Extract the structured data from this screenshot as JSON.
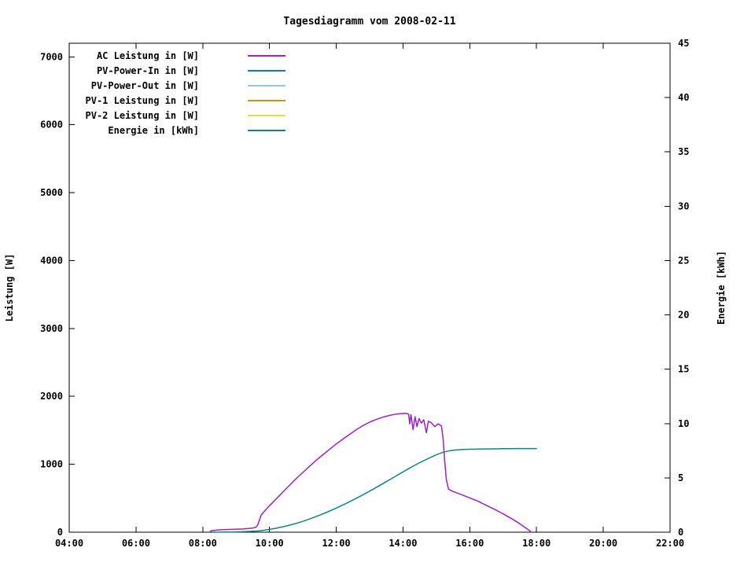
{
  "chart_data": {
    "type": "line",
    "title": "Tagesdiagramm vom 2008-02-11",
    "grid": false,
    "legend_position": "top-left-inside",
    "x_axis": {
      "min": 4,
      "max": 22,
      "ticks": [
        4,
        6,
        8,
        10,
        12,
        14,
        16,
        18,
        20,
        22
      ],
      "tick_labels": [
        "04:00",
        "06:00",
        "08:00",
        "10:00",
        "12:00",
        "14:00",
        "16:00",
        "18:00",
        "20:00",
        "22:00"
      ]
    },
    "y_left": {
      "label": "Leistung [W]",
      "min": 0,
      "max": 7200,
      "ticks": [
        0,
        1000,
        2000,
        3000,
        4000,
        5000,
        6000,
        7000
      ]
    },
    "y_right": {
      "label": "Energie [kWh]",
      "min": 0,
      "max": 45,
      "ticks": [
        0,
        5,
        10,
        15,
        20,
        25,
        30,
        35,
        40,
        45
      ]
    },
    "legend": [
      {
        "label": "AC Leistung in [W]",
        "color": "#A020C0"
      },
      {
        "label": "PV-Power-In in [W]",
        "color": "#008B8B"
      },
      {
        "label": "PV-Power-Out in [W]",
        "color": "#8CC8E8"
      },
      {
        "label": "PV-1 Leistung in [W]",
        "color": "#C89600"
      },
      {
        "label": "PV-2 Leistung in [W]",
        "color": "#E0E040"
      },
      {
        "label": "Energie in [kWh]",
        "color": "#0E8585"
      }
    ],
    "series": [
      {
        "id": "ac-leistung",
        "name": "AC Leistung in [W]",
        "axis": "left",
        "unit": "W",
        "color": "#A020C0",
        "points": [
          [
            8.2,
            0
          ],
          [
            8.25,
            20
          ],
          [
            8.4,
            30
          ],
          [
            8.6,
            38
          ],
          [
            8.9,
            42
          ],
          [
            9.2,
            48
          ],
          [
            9.5,
            60
          ],
          [
            9.6,
            75
          ],
          [
            9.65,
            110
          ],
          [
            9.7,
            180
          ],
          [
            9.75,
            250
          ],
          [
            9.85,
            310
          ],
          [
            10.0,
            390
          ],
          [
            10.2,
            490
          ],
          [
            10.4,
            590
          ],
          [
            10.6,
            690
          ],
          [
            10.8,
            790
          ],
          [
            11.0,
            880
          ],
          [
            11.2,
            970
          ],
          [
            11.4,
            1060
          ],
          [
            11.6,
            1140
          ],
          [
            11.8,
            1220
          ],
          [
            12.0,
            1300
          ],
          [
            12.2,
            1370
          ],
          [
            12.4,
            1440
          ],
          [
            12.6,
            1510
          ],
          [
            12.8,
            1570
          ],
          [
            13.0,
            1620
          ],
          [
            13.2,
            1660
          ],
          [
            13.4,
            1695
          ],
          [
            13.6,
            1720
          ],
          [
            13.8,
            1740
          ],
          [
            14.0,
            1748
          ],
          [
            14.1,
            1750
          ],
          [
            14.17,
            1735
          ],
          [
            14.2,
            1595
          ],
          [
            14.24,
            1730
          ],
          [
            14.3,
            1510
          ],
          [
            14.36,
            1700
          ],
          [
            14.42,
            1555
          ],
          [
            14.48,
            1675
          ],
          [
            14.55,
            1605
          ],
          [
            14.62,
            1655
          ],
          [
            14.7,
            1465
          ],
          [
            14.76,
            1635
          ],
          [
            14.85,
            1610
          ],
          [
            14.95,
            1555
          ],
          [
            15.05,
            1595
          ],
          [
            15.15,
            1565
          ],
          [
            15.2,
            1380
          ],
          [
            15.25,
            1040
          ],
          [
            15.3,
            770
          ],
          [
            15.36,
            635
          ],
          [
            15.45,
            610
          ],
          [
            15.6,
            580
          ],
          [
            15.8,
            545
          ],
          [
            16.0,
            505
          ],
          [
            16.25,
            455
          ],
          [
            16.5,
            395
          ],
          [
            16.75,
            335
          ],
          [
            17.0,
            270
          ],
          [
            17.25,
            200
          ],
          [
            17.5,
            125
          ],
          [
            17.7,
            55
          ],
          [
            17.85,
            0
          ]
        ]
      },
      {
        "id": "energie",
        "name": "Energie in [kWh]",
        "axis": "right",
        "unit": "kWh",
        "color": "#0E8585",
        "points": [
          [
            8.3,
            0
          ],
          [
            9.0,
            0.03
          ],
          [
            9.4,
            0.07
          ],
          [
            9.7,
            0.12
          ],
          [
            10.0,
            0.25
          ],
          [
            10.25,
            0.4
          ],
          [
            10.5,
            0.57
          ],
          [
            10.75,
            0.77
          ],
          [
            11.0,
            1.0
          ],
          [
            11.25,
            1.27
          ],
          [
            11.5,
            1.56
          ],
          [
            11.75,
            1.88
          ],
          [
            12.0,
            2.22
          ],
          [
            12.25,
            2.58
          ],
          [
            12.5,
            2.96
          ],
          [
            12.75,
            3.36
          ],
          [
            13.0,
            3.78
          ],
          [
            13.25,
            4.21
          ],
          [
            13.5,
            4.65
          ],
          [
            13.75,
            5.1
          ],
          [
            14.0,
            5.55
          ],
          [
            14.25,
            5.99
          ],
          [
            14.5,
            6.4
          ],
          [
            14.75,
            6.78
          ],
          [
            15.0,
            7.13
          ],
          [
            15.2,
            7.36
          ],
          [
            15.4,
            7.5
          ],
          [
            15.6,
            7.57
          ],
          [
            15.8,
            7.61
          ],
          [
            16.0,
            7.63
          ],
          [
            16.5,
            7.66
          ],
          [
            17.0,
            7.68
          ],
          [
            17.5,
            7.7
          ],
          [
            18.0,
            7.7
          ]
        ]
      }
    ]
  }
}
